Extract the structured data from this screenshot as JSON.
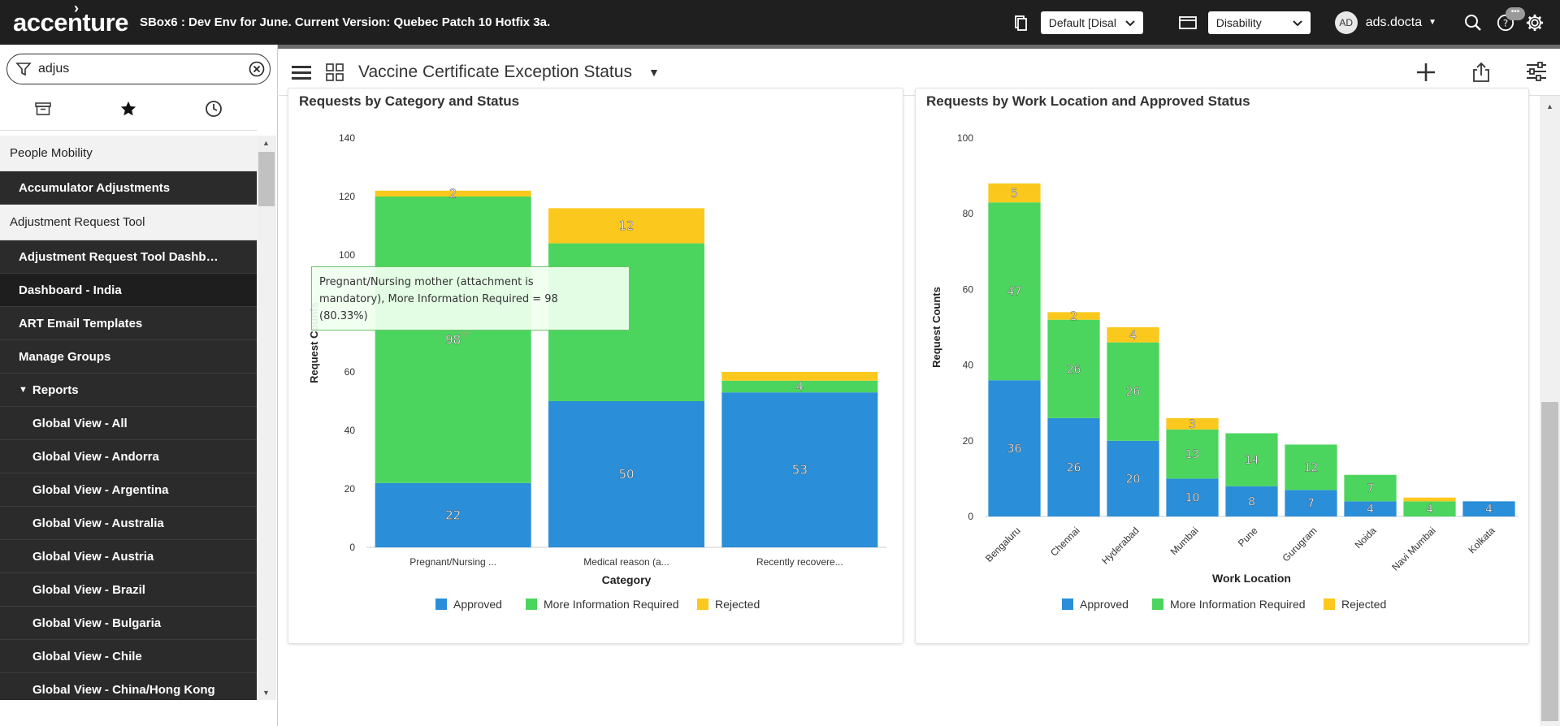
{
  "header": {
    "logo": "accenture",
    "env_title": "SBox6 : Dev Env for June. Current Version: Quebec Patch 10 Hotfix 3a.",
    "domain_select": "Default [Disal",
    "app_select": "Disability",
    "user_initials": "AD",
    "user_name": "ads.docta"
  },
  "nav": {
    "search_value": "adjus",
    "items": [
      {
        "label": "People Mobility",
        "kind": "section"
      },
      {
        "label": "Accumulator Adjustments",
        "kind": "dark"
      },
      {
        "label": "Adjustment Request Tool",
        "kind": "section"
      },
      {
        "label": "Adjustment Request Tool Dashb…",
        "kind": "dark"
      },
      {
        "label": "Dashboard - India",
        "kind": "dark-sel"
      },
      {
        "label": "ART Email Templates",
        "kind": "dark"
      },
      {
        "label": "Manage Groups",
        "kind": "dark"
      },
      {
        "label": "Reports",
        "kind": "dark-expand"
      },
      {
        "label": "Global View - All",
        "kind": "sub"
      },
      {
        "label": "Global View - Andorra",
        "kind": "sub"
      },
      {
        "label": "Global View - Argentina",
        "kind": "sub"
      },
      {
        "label": "Global View - Australia",
        "kind": "sub"
      },
      {
        "label": "Global View - Austria",
        "kind": "sub"
      },
      {
        "label": "Global View - Brazil",
        "kind": "sub"
      },
      {
        "label": "Global View - Bulgaria",
        "kind": "sub"
      },
      {
        "label": "Global View - Chile",
        "kind": "sub"
      },
      {
        "label": "Global View - China/Hong Kong",
        "kind": "sub"
      }
    ]
  },
  "dashboard": {
    "title": "Vaccine Certificate Exception Status"
  },
  "colors": {
    "approved": "#2a8ed8",
    "more_info": "#4cd55e",
    "rejected": "#fbc81e"
  },
  "tooltip": {
    "line1": "Pregnant/Nursing mother (attachment is",
    "line2": "mandatory), More Information Required = 98",
    "line3": "(80.33%)"
  },
  "chart_data": [
    {
      "type": "bar",
      "stacked": true,
      "title": "Requests by Category and Status",
      "xlabel": "Category",
      "ylabel": "Request Counts",
      "ylim": [
        0,
        140
      ],
      "yticks": [
        0,
        20,
        40,
        60,
        80,
        100,
        120,
        140
      ],
      "categories": [
        "Pregnant/Nursing ...",
        "Medical reason (a...",
        "Recently recovere..."
      ],
      "series": [
        {
          "name": "Approved",
          "values": [
            22,
            50,
            53
          ]
        },
        {
          "name": "More Information Required",
          "values": [
            98,
            54,
            4
          ]
        },
        {
          "name": "Rejected",
          "values": [
            2,
            12,
            3
          ]
        }
      ],
      "labels": [
        [
          "22",
          "50",
          "53"
        ],
        [
          "98",
          "",
          "4"
        ],
        [
          "2",
          "12",
          ""
        ]
      ],
      "legend": "bottom"
    },
    {
      "type": "bar",
      "stacked": true,
      "title": "Requests by Work Location and Approved Status",
      "xlabel": "Work Location",
      "ylabel": "Request Counts",
      "ylim": [
        0,
        100
      ],
      "yticks": [
        0,
        20,
        40,
        60,
        80,
        100
      ],
      "categories": [
        "Bengaluru",
        "Chennai",
        "Hyderabad",
        "Mumbai",
        "Pune",
        "Gurugram",
        "Noida",
        "Navi Mumbai",
        "Kolkata"
      ],
      "series": [
        {
          "name": "Approved",
          "values": [
            36,
            26,
            20,
            10,
            8,
            7,
            4,
            0,
            4
          ]
        },
        {
          "name": "More Information Required",
          "values": [
            47,
            26,
            26,
            13,
            14,
            12,
            7,
            4,
            0
          ]
        },
        {
          "name": "Rejected",
          "values": [
            5,
            2,
            4,
            3,
            0,
            0,
            0,
            1,
            0
          ]
        }
      ],
      "labels": [
        [
          "36",
          "26",
          "20",
          "10",
          "8",
          "7",
          "4",
          "",
          "4"
        ],
        [
          "47",
          "26",
          "26",
          "13",
          "14",
          "12",
          "7",
          "4",
          ""
        ],
        [
          "5",
          "2",
          "4",
          "3",
          "",
          "",
          "",
          "",
          ""
        ]
      ],
      "legend": "bottom"
    }
  ]
}
